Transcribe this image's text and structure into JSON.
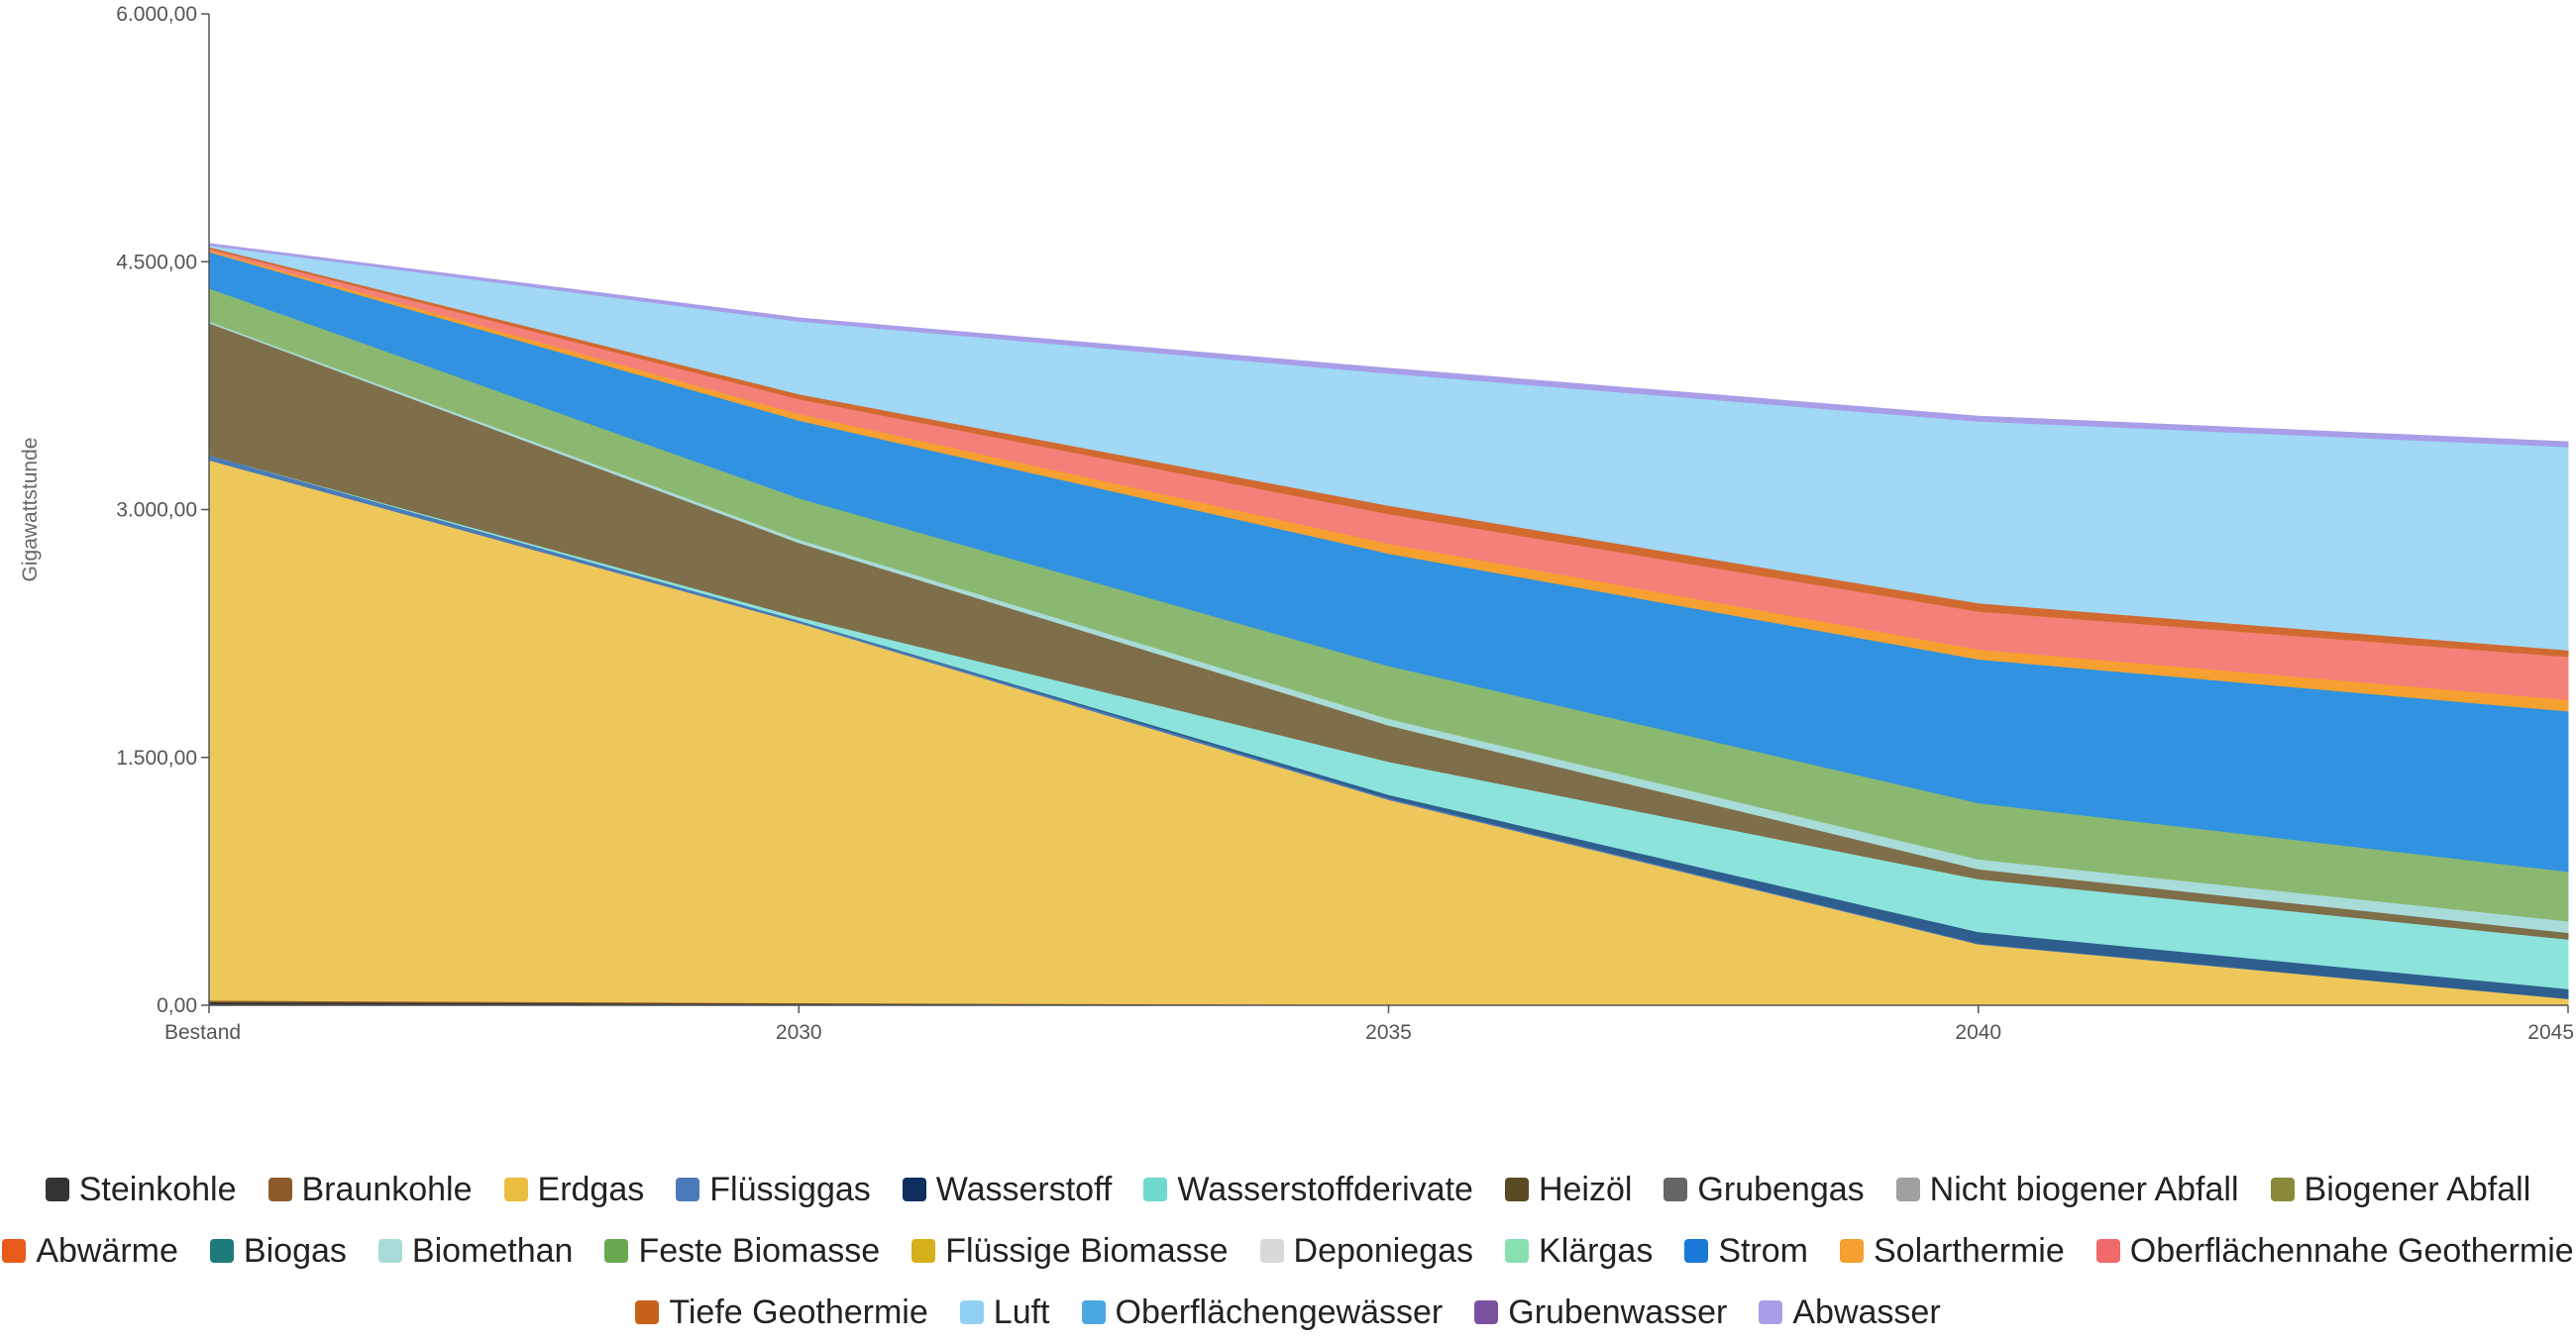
{
  "chart_data": {
    "type": "area",
    "stacked": true,
    "ylabel": "Gigawattstunde",
    "xlabel": "",
    "ylim": [
      0,
      6000
    ],
    "yticks": [
      "0,00",
      "1.500,00",
      "3.000,00",
      "4.500,00",
      "6.000,00"
    ],
    "ytick_values": [
      0,
      1500,
      3000,
      4500,
      6000
    ],
    "categories": [
      "Bestand",
      "2030",
      "2035",
      "2040",
      "2045"
    ],
    "legend_position": "bottom",
    "series": [
      {
        "name": "Steinkohle",
        "color": "#333333",
        "values": [
          20,
          10,
          5,
          0,
          0
        ]
      },
      {
        "name": "Braunkohle",
        "color": "#8b5a2b",
        "values": [
          10,
          5,
          0,
          0,
          0
        ]
      },
      {
        "name": "Erdgas",
        "color": "#eec75a",
        "values": [
          3270,
          2300,
          1240,
          370,
          40
        ]
      },
      {
        "name": "Flüssiggas",
        "color": "#4a7ab8",
        "values": [
          30,
          15,
          10,
          5,
          0
        ]
      },
      {
        "name": "Wasserstoff",
        "color": "#2e5e8e",
        "values": [
          0,
          0,
          20,
          70,
          60
        ]
      },
      {
        "name": "Wasserstoffderivate",
        "color": "#8ce3dc",
        "values": [
          0,
          20,
          200,
          320,
          300
        ]
      },
      {
        "name": "Heizöl",
        "color": "#7f6e4a",
        "values": [
          800,
          450,
          220,
          60,
          40
        ]
      },
      {
        "name": "Grubengas",
        "color": "#666666",
        "values": [
          0,
          0,
          0,
          0,
          0
        ]
      },
      {
        "name": "Nicht biogener Abfall",
        "color": "#a0a0a0",
        "values": [
          0,
          0,
          0,
          0,
          0
        ]
      },
      {
        "name": "Biogener Abfall",
        "color": "#8a8a3a",
        "values": [
          0,
          0,
          0,
          0,
          0
        ]
      },
      {
        "name": "Abwärme",
        "color": "#e85a1a",
        "values": [
          0,
          0,
          0,
          0,
          0
        ]
      },
      {
        "name": "Biogas",
        "color": "#1e7b7b",
        "values": [
          0,
          0,
          0,
          0,
          0
        ]
      },
      {
        "name": "Biomethan",
        "color": "#a8dcd9",
        "values": [
          10,
          20,
          40,
          60,
          70
        ]
      },
      {
        "name": "Feste Biomasse",
        "color": "#8bb870",
        "values": [
          200,
          250,
          320,
          340,
          300
        ]
      },
      {
        "name": "Flüssige Biomasse",
        "color": "#d4b01a",
        "values": [
          0,
          0,
          0,
          0,
          0
        ]
      },
      {
        "name": "Deponiegas",
        "color": "#d8d8d8",
        "values": [
          0,
          0,
          0,
          0,
          0
        ]
      },
      {
        "name": "Klärgas",
        "color": "#88e0b0",
        "values": [
          0,
          0,
          0,
          0,
          0
        ]
      },
      {
        "name": "Strom",
        "color": "#3092e0",
        "values": [
          220,
          470,
          680,
          870,
          970
        ]
      },
      {
        "name": "Solarthermie",
        "color": "#f5a030",
        "values": [
          10,
          40,
          60,
          60,
          70
        ]
      },
      {
        "name": "Oberflächennahe Geothermie",
        "color": "#f5807a",
        "values": [
          10,
          90,
          180,
          230,
          260
        ]
      },
      {
        "name": "Tiefe Geothermie",
        "color": "#d06a30",
        "values": [
          10,
          30,
          50,
          50,
          40
        ]
      },
      {
        "name": "Luft",
        "color": "#a0d8f5",
        "values": [
          10,
          440,
          800,
          1100,
          1230
        ]
      },
      {
        "name": "Oberflächengewässer",
        "color": "#4aa8e0",
        "values": [
          0,
          0,
          0,
          0,
          0
        ]
      },
      {
        "name": "Grubenwasser",
        "color": "#7a52a0",
        "values": [
          0,
          0,
          0,
          0,
          0
        ]
      },
      {
        "name": "Abwasser",
        "color": "#a89ee8",
        "values": [
          10,
          20,
          30,
          30,
          30
        ]
      }
    ]
  },
  "legend": {
    "rows": [
      [
        "Steinkohle",
        "Braunkohle",
        "Erdgas",
        "Flüssiggas",
        "Wasserstoff",
        "Wasserstoffderivate",
        "Heizöl",
        "Grubengas",
        "Nicht biogener Abfall",
        "Biogener Abfall"
      ],
      [
        "Abwärme",
        "Biogas",
        "Biomethan",
        "Feste Biomasse",
        "Flüssige Biomasse",
        "Deponiegas",
        "Klärgas",
        "Strom",
        "Solarthermie",
        "Oberflächennahe Geothermie"
      ],
      [
        "Tiefe Geothermie",
        "Luft",
        "Oberflächengewässer",
        "Grubenwasser",
        "Abwasser"
      ]
    ],
    "colors": {
      "Steinkohle": "#333333",
      "Braunkohle": "#8b5a2b",
      "Erdgas": "#e9bd40",
      "Flüssiggas": "#4a7ab8",
      "Wasserstoff": "#0d2e5e",
      "Wasserstoffderivate": "#6fd8cf",
      "Heizöl": "#5a4a22",
      "Grubengas": "#666666",
      "Nicht biogener Abfall": "#a0a0a0",
      "Biogener Abfall": "#8a8a3a",
      "Abwärme": "#e85a1a",
      "Biogas": "#1e7b7b",
      "Biomethan": "#a8dcd9",
      "Feste Biomasse": "#6aa84f",
      "Flüssige Biomasse": "#d4b01a",
      "Deponiegas": "#d8d8d8",
      "Klärgas": "#88e0b0",
      "Strom": "#1a78d8",
      "Solarthermie": "#f5a030",
      "Oberflächennahe Geothermie": "#f06a6a",
      "Tiefe Geothermie": "#c8621a",
      "Luft": "#90d0f5",
      "Oberflächengewässer": "#4aa8e0",
      "Grubenwasser": "#7a52a0",
      "Abwasser": "#a89ee8"
    }
  }
}
